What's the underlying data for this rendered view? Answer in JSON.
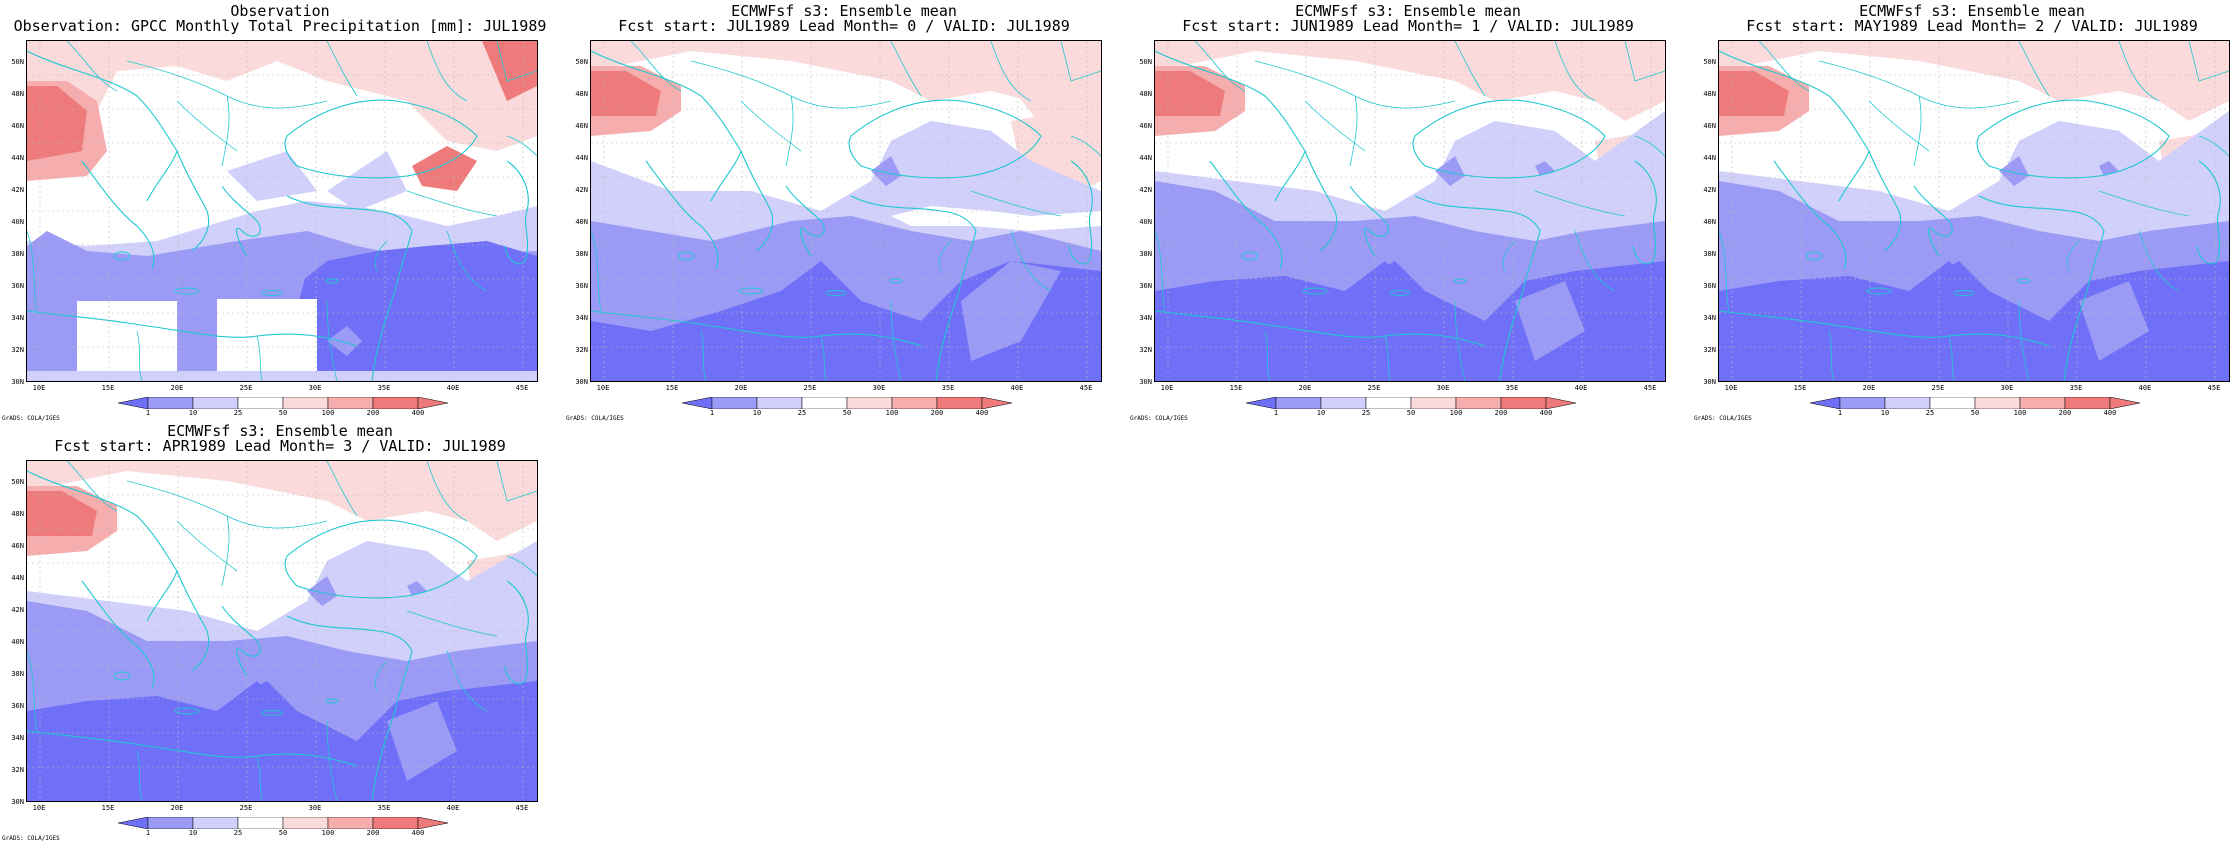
{
  "panels": [
    {
      "title1": "Observation",
      "title2": "Observation: GPCC Monthly Total Precipitation [mm]: JUL1989",
      "variant": "obs"
    },
    {
      "title1": "ECMWFsf s3: Ensemble mean",
      "title2": "Fcst start: JUL1989  Lead Month= 0 / VALID: JUL1989",
      "variant": "lead0"
    },
    {
      "title1": "ECMWFsf s3: Ensemble mean",
      "title2": "Fcst start: JUN1989  Lead Month= 1 / VALID: JUL1989",
      "variant": "lead1"
    },
    {
      "title1": "ECMWFsf s3: Ensemble mean",
      "title2": "Fcst start: MAY1989  Lead Month= 2 / VALID: JUL1989",
      "variant": "lead2"
    },
    {
      "title1": "ECMWFsf s3: Ensemble mean",
      "title2": "Fcst start: APR1989  Lead Month= 3 / VALID: JUL1989",
      "variant": "lead3"
    }
  ],
  "lat_labels": [
    "50N",
    "48N",
    "46N",
    "44N",
    "42N",
    "40N",
    "38N",
    "36N",
    "34N",
    "32N",
    "30N"
  ],
  "lon_labels": [
    "10E",
    "15E",
    "20E",
    "25E",
    "30E",
    "35E",
    "40E",
    "45E"
  ],
  "colorbar_labels": [
    "1",
    "10",
    "25",
    "50",
    "100",
    "200",
    "400"
  ],
  "colors": {
    "blue3": "#6f6ff8",
    "blue2": "#9b9bf6",
    "blue1": "#d0d0fb",
    "white": "#ffffff",
    "red1": "#fadadb",
    "red2": "#f5adae",
    "red3": "#ee7a7b",
    "coast": "#20c8d0"
  },
  "credit": "GrADS: COLA/IGES"
}
